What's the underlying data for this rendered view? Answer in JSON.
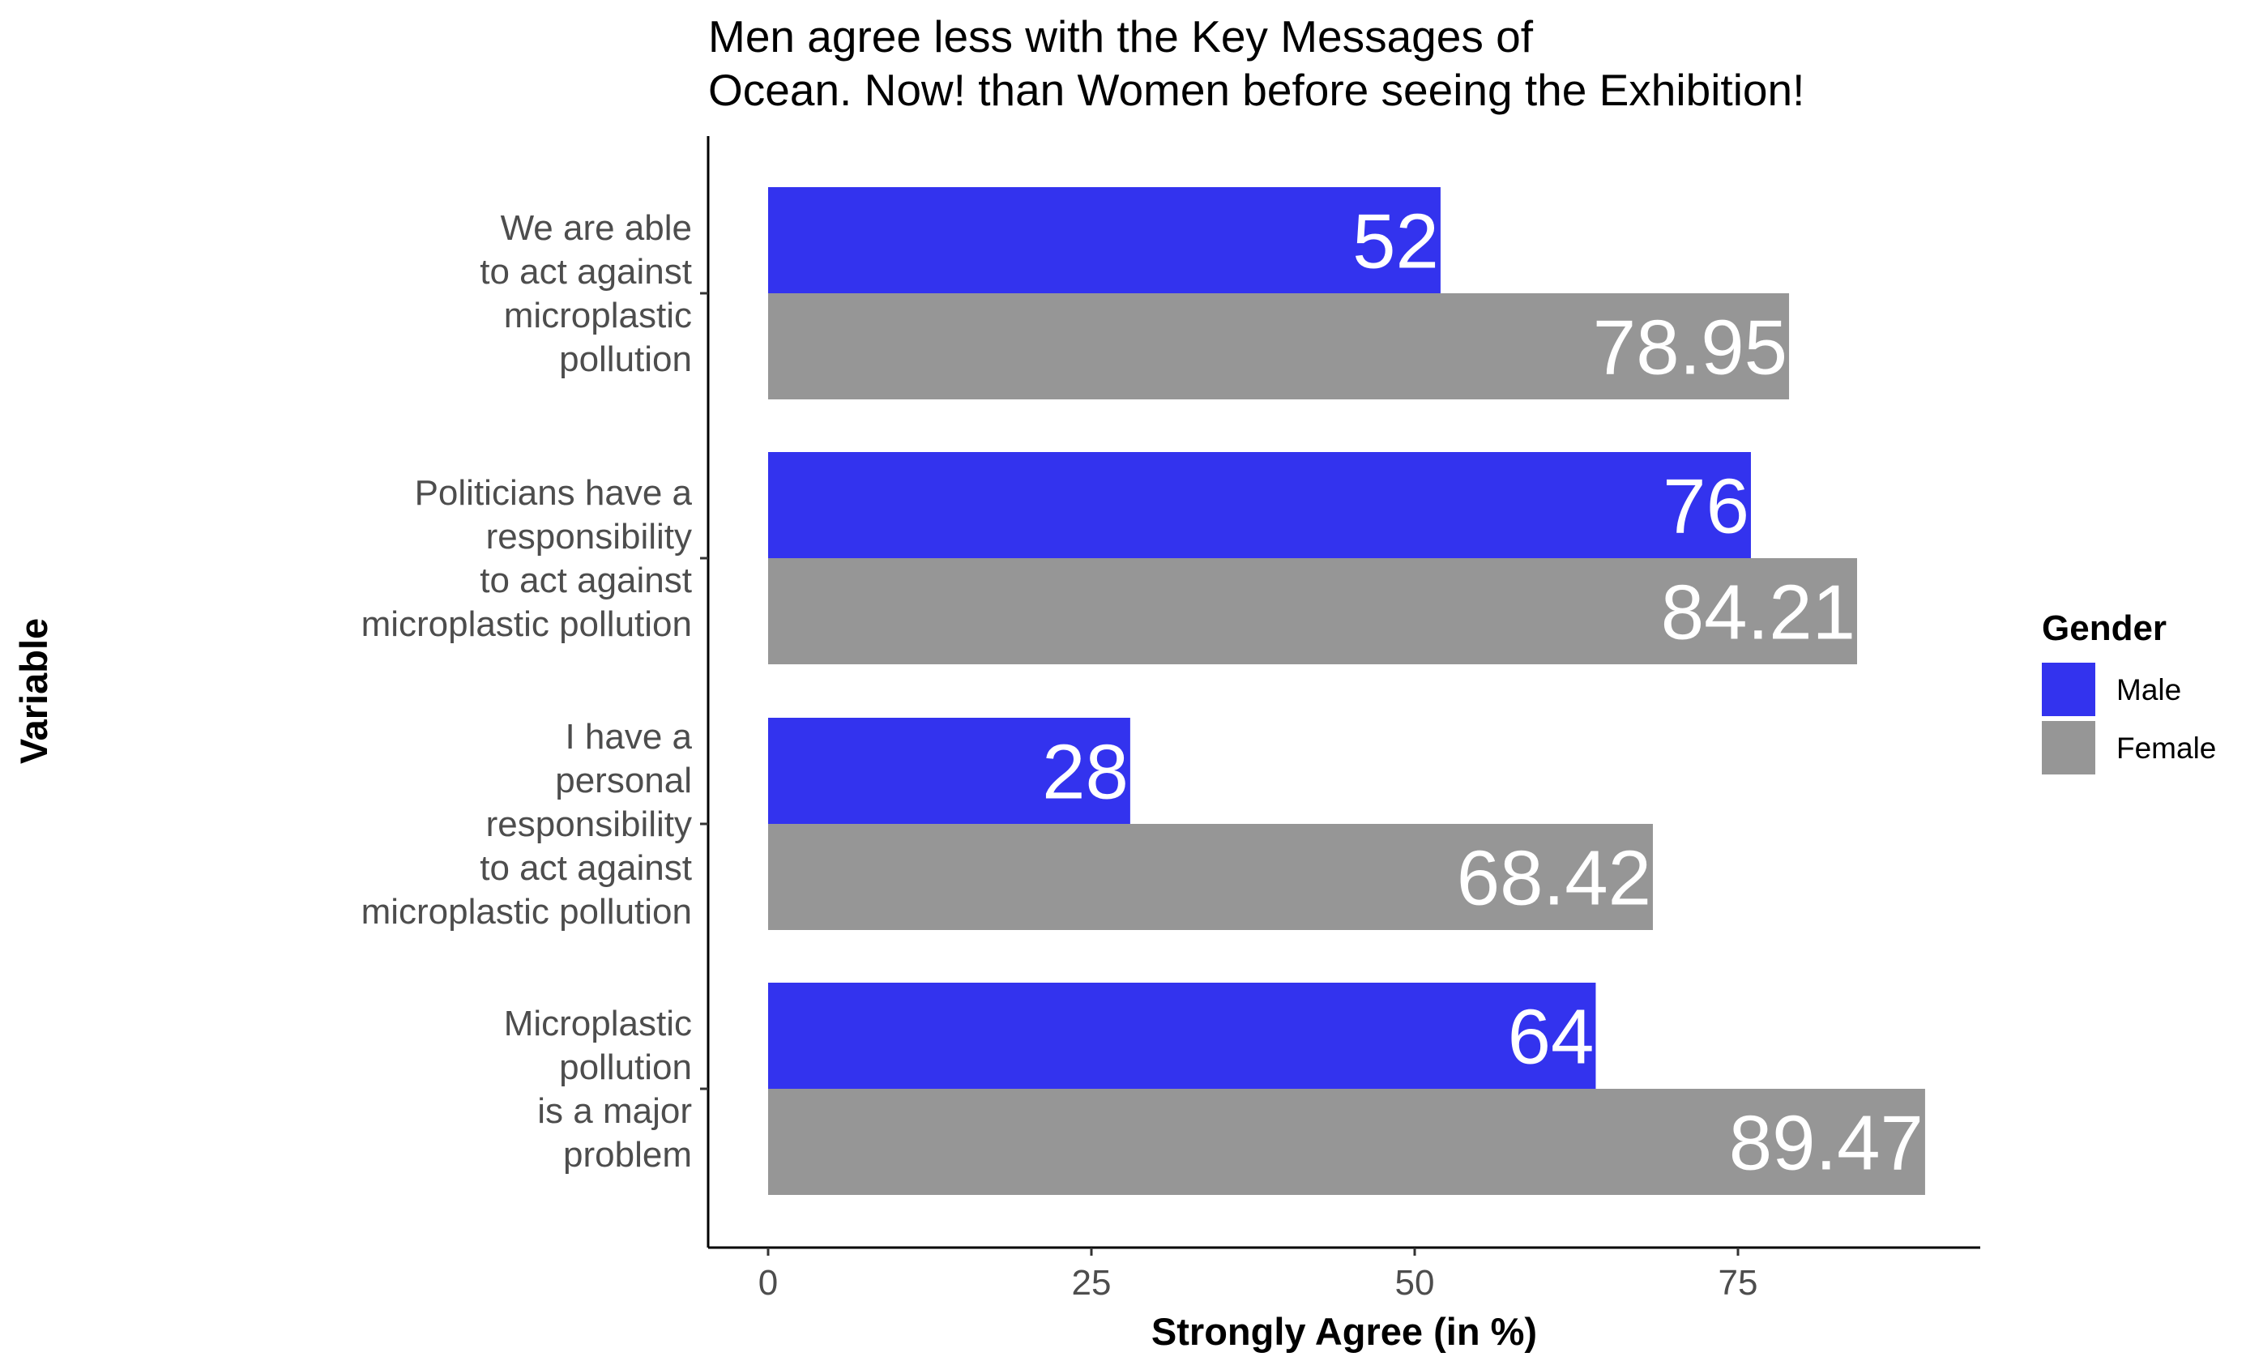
{
  "chart_data": {
    "type": "bar",
    "orientation": "horizontal",
    "title": [
      "Men agree less with the Key Messages of",
      "Ocean. Now! than Women before seeing the Exhibition!"
    ],
    "xlabel": "Strongly Agree (in %)",
    "ylabel": "Variable",
    "xlim": [
      0,
      90
    ],
    "xticks": [
      0,
      25,
      50,
      75
    ],
    "grid": false,
    "legend": {
      "title": "Gender",
      "position": "right"
    },
    "categories": [
      [
        "We are able",
        "to act against",
        "microplastic",
        "pollution"
      ],
      [
        "Politicians have a",
        "responsibility",
        "to act against",
        "microplastic pollution"
      ],
      [
        "I have a",
        "personal",
        "responsibility",
        "to act against",
        "microplastic pollution"
      ],
      [
        "Microplastic",
        "pollution",
        "is a major",
        "problem"
      ]
    ],
    "series": [
      {
        "name": "Male",
        "color": "#3333ee",
        "values": [
          52,
          76,
          28,
          64
        ]
      },
      {
        "name": "Female",
        "color": "#969696",
        "values": [
          78.95,
          84.21,
          68.42,
          89.47
        ]
      }
    ]
  }
}
